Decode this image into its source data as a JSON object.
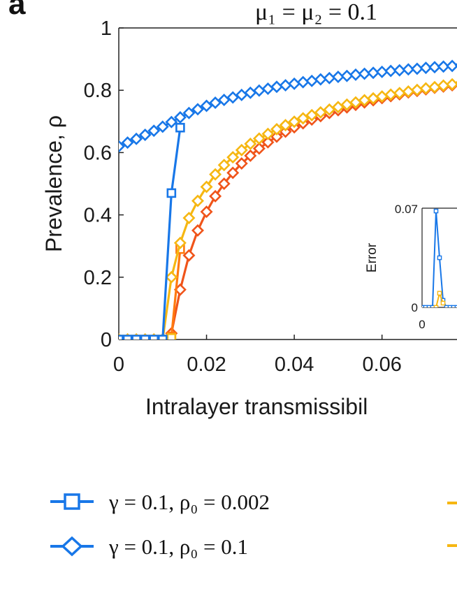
{
  "panel_label": "a",
  "title": "μ₁ = μ₂ = 0.1",
  "colors": {
    "blue": "#1877e8",
    "yellow": "#f6b712",
    "orange": "#ff7a10",
    "red_orange": "#f0541a"
  },
  "chart_data": [
    {
      "type": "line",
      "title": "μ₁ = μ₂ = 0.1",
      "xlabel": "Intralayer transmissibil",
      "ylabel": "Prevalence, ρ",
      "xlim": [
        0,
        0.0808
      ],
      "ylim": [
        0,
        1
      ],
      "xticks": [
        "0",
        "0.02",
        "0.04",
        "0.06",
        "0"
      ],
      "yticks": [
        "0",
        "0.2",
        "0.4",
        "0.6",
        "0.8",
        "1"
      ],
      "series": [
        {
          "name": "γ = 0.1, ρ₀ = 0.002",
          "color": "#1877e8",
          "marker": "square",
          "x": [
            0,
            0.002,
            0.004,
            0.006,
            0.008,
            0.01,
            0.012,
            0.014
          ],
          "y": [
            0.0,
            0.0,
            0.0,
            0.0,
            0.0,
            0.0,
            0.47,
            0.68
          ]
        },
        {
          "name": "γ = 0.1, ρ₀ = 0.1",
          "color": "#1877e8",
          "marker": "diamond",
          "x": [
            0,
            0.002,
            0.004,
            0.006,
            0.008,
            0.01,
            0.012,
            0.014,
            0.016,
            0.018,
            0.02,
            0.022,
            0.024,
            0.026,
            0.028,
            0.03,
            0.032,
            0.034,
            0.036,
            0.038,
            0.04,
            0.042,
            0.044,
            0.046,
            0.048,
            0.05,
            0.052,
            0.054,
            0.056,
            0.058,
            0.06,
            0.062,
            0.064,
            0.066,
            0.068,
            0.07,
            0.072,
            0.074,
            0.076,
            0.078,
            0.08
          ],
          "y": [
            0.62,
            0.632,
            0.644,
            0.657,
            0.67,
            0.683,
            0.698,
            0.713,
            0.727,
            0.739,
            0.75,
            0.76,
            0.769,
            0.777,
            0.785,
            0.792,
            0.799,
            0.805,
            0.811,
            0.816,
            0.821,
            0.826,
            0.83,
            0.835,
            0.839,
            0.843,
            0.846,
            0.85,
            0.853,
            0.856,
            0.859,
            0.862,
            0.864,
            0.867,
            0.869,
            0.872,
            0.874,
            0.876,
            0.878,
            0.88,
            0.882
          ]
        },
        {
          "name": "yellow square series",
          "color": "#f6b712",
          "marker": "square",
          "x": [
            0,
            0.002,
            0.004,
            0.006,
            0.008,
            0.01,
            0.012
          ],
          "y": [
            0.0,
            0.0,
            0.0,
            0.0,
            0.0,
            0.0,
            0.005
          ]
        },
        {
          "name": "yellow diamond series",
          "color": "#f6b712",
          "marker": "diamond",
          "x": [
            0,
            0.002,
            0.004,
            0.006,
            0.008,
            0.01,
            0.012,
            0.014,
            0.016,
            0.018,
            0.02,
            0.022,
            0.024,
            0.026,
            0.028,
            0.03,
            0.032,
            0.034,
            0.036,
            0.038,
            0.04,
            0.042,
            0.044,
            0.046,
            0.048,
            0.05,
            0.052,
            0.054,
            0.056,
            0.058,
            0.06,
            0.062,
            0.064,
            0.066,
            0.068,
            0.07,
            0.072,
            0.074,
            0.076,
            0.078,
            0.08
          ],
          "y": [
            0.0,
            0.0,
            0.0,
            0.0,
            0.0,
            0.0,
            0.2,
            0.31,
            0.39,
            0.445,
            0.49,
            0.53,
            0.56,
            0.585,
            0.608,
            0.628,
            0.645,
            0.66,
            0.675,
            0.688,
            0.699,
            0.71,
            0.72,
            0.729,
            0.738,
            0.746,
            0.754,
            0.761,
            0.768,
            0.774,
            0.78,
            0.786,
            0.791,
            0.796,
            0.801,
            0.806,
            0.81,
            0.815,
            0.819,
            0.823,
            0.827
          ]
        },
        {
          "name": "orange square series",
          "color": "#ff7a10",
          "marker": "square",
          "x": [
            0,
            0.002,
            0.004,
            0.006,
            0.008,
            0.01,
            0.012,
            0.014
          ],
          "y": [
            0.0,
            0.0,
            0.0,
            0.0,
            0.0,
            0.0,
            0.01,
            0.29
          ]
        },
        {
          "name": "red-orange diamond series",
          "color": "#f0541a",
          "marker": "diamond",
          "x": [
            0,
            0.002,
            0.004,
            0.006,
            0.008,
            0.01,
            0.012,
            0.014,
            0.016,
            0.018,
            0.02,
            0.022,
            0.024,
            0.026,
            0.028,
            0.03,
            0.032,
            0.034,
            0.036,
            0.038,
            0.04,
            0.042,
            0.044,
            0.046,
            0.048,
            0.05,
            0.052,
            0.054,
            0.056,
            0.058,
            0.06,
            0.062,
            0.064,
            0.066,
            0.068,
            0.07,
            0.072,
            0.074,
            0.076,
            0.078,
            0.08
          ],
          "y": [
            0.0,
            0.0,
            0.0,
            0.0,
            0.0,
            0.0,
            0.02,
            0.16,
            0.27,
            0.35,
            0.41,
            0.46,
            0.5,
            0.535,
            0.565,
            0.59,
            0.613,
            0.633,
            0.651,
            0.667,
            0.681,
            0.694,
            0.706,
            0.717,
            0.727,
            0.736,
            0.745,
            0.753,
            0.761,
            0.768,
            0.775,
            0.781,
            0.787,
            0.793,
            0.798,
            0.803,
            0.808,
            0.812,
            0.816,
            0.82,
            0.824
          ]
        }
      ],
      "grid": false,
      "legend": "bottom"
    },
    {
      "type": "line",
      "title": "",
      "xlabel": "",
      "ylabel": "Error",
      "ylim": [
        0,
        0.07
      ],
      "yticks": [
        "0.07",
        "0"
      ],
      "xticks": [
        "0"
      ],
      "xlim": [
        0,
        0.1
      ],
      "series": [
        {
          "name": "blue error",
          "color": "#1877e8",
          "marker": "square",
          "x": [
            0,
            0.004,
            0.008,
            0.012,
            0.016,
            0.02,
            0.024,
            0.028,
            0.032,
            0.036,
            0.04,
            0.044,
            0.048,
            0.052
          ],
          "y": [
            0.0,
            0.0,
            0.0,
            0.0,
            0.068,
            0.035,
            0.005,
            0.0,
            0.0,
            0.0,
            0.0,
            0.0,
            0.0,
            0.0
          ]
        },
        {
          "name": "yellow error",
          "color": "#f6b712",
          "marker": "square",
          "x": [
            0.016,
            0.02,
            0.024
          ],
          "y": [
            0.0,
            0.01,
            0.003
          ]
        }
      ]
    }
  ],
  "legend": {
    "items": [
      {
        "label": "γ = 0.1, ρ₀ = 0.002",
        "color": "#1877e8",
        "marker": "square"
      },
      {
        "label": "γ = 0.1, ρ₀ = 0.1",
        "color": "#1877e8",
        "marker": "diamond"
      }
    ]
  }
}
